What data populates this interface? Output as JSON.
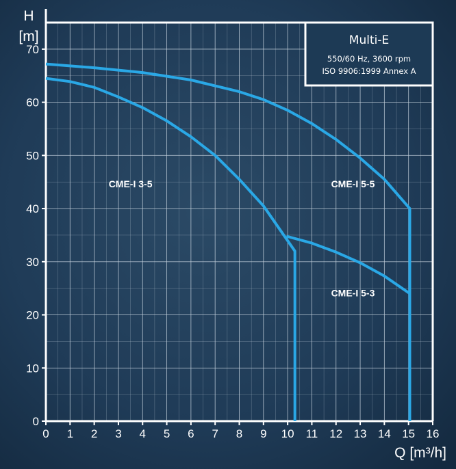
{
  "chart_data": {
    "type": "line",
    "title": "Multi-E",
    "subtitle_lines": [
      "550/60 Hz, 3600 rpm",
      "ISO 9906:1999 Annex A"
    ],
    "ylabel": "H",
    "yunit": "[m]",
    "xlabel": "Q [m³/h]",
    "xlim": [
      0,
      16
    ],
    "ylim": [
      0,
      75
    ],
    "grid": true,
    "x_ticks": [
      0,
      1,
      2,
      3,
      4,
      5,
      6,
      7,
      8,
      9,
      10,
      11,
      12,
      13,
      14,
      15,
      16
    ],
    "y_ticks": [
      0,
      10,
      20,
      30,
      40,
      50,
      60,
      70
    ],
    "series": [
      {
        "name": "CME-I 5-5",
        "points": [
          [
            0,
            67.2
          ],
          [
            2,
            66.5
          ],
          [
            4,
            65.6
          ],
          [
            6,
            64.2
          ],
          [
            8,
            62.0
          ],
          [
            9,
            60.5
          ],
          [
            10,
            58.5
          ],
          [
            11,
            56.0
          ],
          [
            12,
            53.0
          ],
          [
            13,
            49.5
          ],
          [
            14,
            45.5
          ],
          [
            15.05,
            40.0
          ],
          [
            15.05,
            0
          ]
        ]
      },
      {
        "name": "CME-I 3-5",
        "points": [
          [
            0,
            64.5
          ],
          [
            1,
            63.9
          ],
          [
            2,
            62.8
          ],
          [
            3,
            61.0
          ],
          [
            4,
            59.0
          ],
          [
            5,
            56.5
          ],
          [
            6,
            53.5
          ],
          [
            7,
            50.0
          ],
          [
            8,
            45.5
          ],
          [
            9,
            40.5
          ],
          [
            10.3,
            32.0
          ],
          [
            10.3,
            0
          ]
        ]
      },
      {
        "name": "CME-I 5-3",
        "points": [
          [
            9.95,
            34.8
          ],
          [
            11,
            33.5
          ],
          [
            12,
            31.8
          ],
          [
            13,
            29.8
          ],
          [
            14,
            27.3
          ],
          [
            15.05,
            24.0
          ]
        ]
      }
    ],
    "series_labels": [
      {
        "text": "CME-I 3-5",
        "x": 3.5,
        "y": 44
      },
      {
        "text": "CME-I 5-5",
        "x": 12.7,
        "y": 44
      },
      {
        "text": "CME-I 5-3",
        "x": 12.7,
        "y": 23.5
      }
    ],
    "colors": {
      "background": "#1d3a55",
      "curve": "#2aa8e6",
      "grid": "#c6d2dd",
      "frame": "#ffffff",
      "text": "#ffffff"
    }
  }
}
